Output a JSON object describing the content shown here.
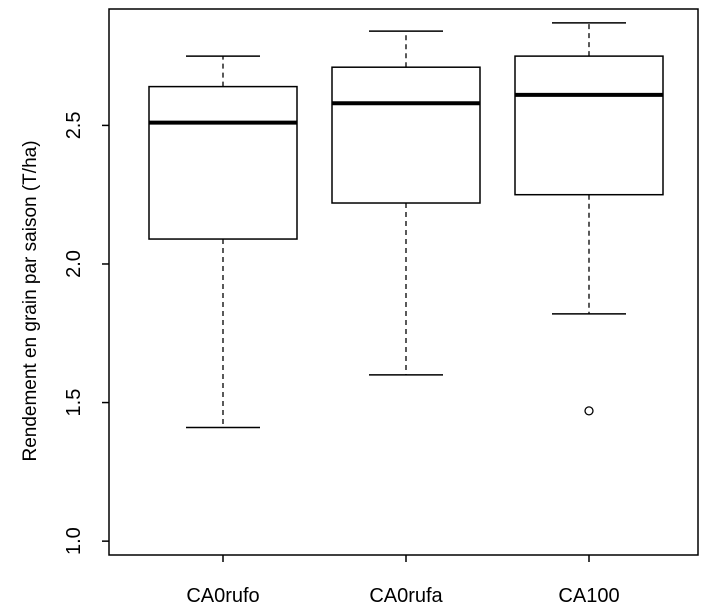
{
  "chart_data": {
    "type": "boxplot",
    "title": "",
    "xlabel": "",
    "ylabel": "Rendement en grain par saison (T/ha)",
    "ylim": [
      0.95,
      2.92
    ],
    "y_ticks": [
      1.0,
      1.5,
      2.0,
      2.5
    ],
    "y_tick_labels": [
      "1.0",
      "1.5",
      "2.0",
      "2.5"
    ],
    "grid": false,
    "legend": "none",
    "categories": [
      "CA0rufo",
      "CA0rufa",
      "CA100"
    ],
    "boxes": [
      {
        "name": "CA0rufo",
        "whisker_low": 1.41,
        "q1": 2.09,
        "median": 2.51,
        "q3": 2.64,
        "whisker_high": 2.75,
        "outliers": []
      },
      {
        "name": "CA0rufa",
        "whisker_low": 1.6,
        "q1": 2.22,
        "median": 2.58,
        "q3": 2.71,
        "whisker_high": 2.84,
        "outliers": []
      },
      {
        "name": "CA100",
        "whisker_low": 1.82,
        "q1": 2.25,
        "median": 2.61,
        "q3": 2.75,
        "whisker_high": 2.87,
        "outliers": [
          1.47
        ]
      }
    ],
    "colors": {
      "box_fill": "#ffffff",
      "stroke": "#000000",
      "background": "#ffffff"
    }
  }
}
